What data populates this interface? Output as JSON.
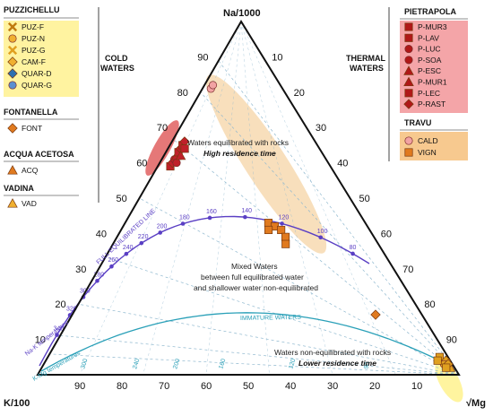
{
  "chart_data": {
    "type": "scatter",
    "subtype": "ternary (Giggenbach Na-K-Mg diagram)",
    "vertices": {
      "top": "Na/1000",
      "left": "K/100",
      "right": "√Mg"
    },
    "ticks": {
      "left_edge": [
        "10",
        "20",
        "30",
        "40",
        "50",
        "60",
        "70",
        "80",
        "90"
      ],
      "right_edge": [
        "10",
        "20",
        "30",
        "40",
        "50",
        "60",
        "70",
        "80",
        "90"
      ],
      "bottom_edge": [
        "90",
        "80",
        "70",
        "60",
        "50",
        "40",
        "30",
        "20",
        "10"
      ],
      "full_eq_temps": [
        "80",
        "100",
        "120",
        "140",
        "160",
        "180",
        "200",
        "220",
        "240",
        "260",
        "280",
        "300",
        "320",
        "340"
      ],
      "kmg_temps": [
        "300",
        "240",
        "200",
        "160",
        "120",
        "90"
      ]
    },
    "curve_labels": {
      "full": "FULL EQUILIBRATED LINE",
      "immature": "IMMATURE WATERS",
      "nak": "Na-K temperatures",
      "kmg": "K-Mg temperatures"
    },
    "zone_labels": {
      "cold": [
        "COLD",
        "WATERS"
      ],
      "thermal": [
        "THERMAL",
        "WATERS"
      ],
      "equil": [
        "Waters equilibrated with rocks",
        "High residence time"
      ],
      "mixed": [
        "Mixed Waters",
        "between full equilibrated water",
        "and shallower water non-equilibrated"
      ],
      "nonequil": [
        "Waters non-equilibrated with rocks",
        "Lower residence time"
      ]
    },
    "legend": {
      "puzzichellu": {
        "title": "PUZZICHELLU",
        "items": [
          "PUZ-F",
          "PUZ-N",
          "PUZ-G",
          "CAM-F",
          "QUAR-D",
          "QUAR-G"
        ]
      },
      "fontanella": {
        "title": "FONTANELLA",
        "items": [
          "FONT"
        ]
      },
      "acqua": {
        "title": "ACQUA ACETOSA",
        "items": [
          "ACQ"
        ]
      },
      "vadina": {
        "title": "VADINA",
        "items": [
          "VAD"
        ]
      },
      "pietrapola": {
        "title": "PIETRAPOLA",
        "items": [
          "P-MUR3",
          "P-LAV",
          "P-LUC",
          "P-SOA",
          "P-ESC",
          "P-MUR1",
          "P-LEC",
          "P-RAST"
        ]
      },
      "travu": {
        "title": "TRAVU",
        "items": [
          "CALD",
          "VIGN"
        ]
      }
    },
    "series": [
      {
        "name": "Pietrapola",
        "marker": "mixed",
        "color": "#c0202a",
        "points": [
          [
            59,
            38,
            3
          ],
          [
            60,
            37,
            3
          ],
          [
            61,
            36,
            3
          ],
          [
            62,
            35,
            3
          ],
          [
            63,
            34,
            3
          ],
          [
            64,
            33,
            3
          ],
          [
            65,
            32,
            3
          ],
          [
            66,
            31,
            3
          ],
          [
            60,
            36,
            4
          ],
          [
            62,
            34,
            4
          ],
          [
            64,
            32,
            4
          ]
        ]
      },
      {
        "name": "CALD",
        "marker": "circle",
        "color": "#f2a3a3",
        "points": [
          [
            81,
            17,
            2
          ],
          [
            82,
            16,
            2
          ]
        ]
      },
      {
        "name": "VIGN",
        "marker": "square",
        "color": "#e07a1f",
        "points": [
          [
            43,
            23,
            34
          ],
          [
            42,
            22,
            36
          ],
          [
            41,
            21,
            38
          ],
          [
            41,
            24,
            35
          ],
          [
            39,
            21,
            40
          ],
          [
            37,
            22,
            41
          ]
        ]
      },
      {
        "name": "FONT",
        "marker": "diamond",
        "color": "#e07a1f",
        "points": [
          [
            17,
            11,
            72
          ]
        ]
      },
      {
        "name": "Puzzichellu",
        "marker": "mixed",
        "color": "#e0a020",
        "points": [
          [
            5,
            2,
            93
          ],
          [
            4,
            1,
            95
          ],
          [
            3,
            2,
            95
          ],
          [
            2,
            1,
            97
          ],
          [
            4,
            3,
            93
          ],
          [
            3,
            1,
            96
          ],
          [
            2,
            2,
            96
          ]
        ]
      }
    ],
    "colors": {
      "pietrapola": "#c0202a",
      "travu_fill": "#f7d9b0",
      "puzzichellu_fill": "#fff3a0",
      "full_line": "#5a3fc4",
      "immature_line": "#2aa0b8",
      "grid": "#8fb8cf"
    }
  }
}
